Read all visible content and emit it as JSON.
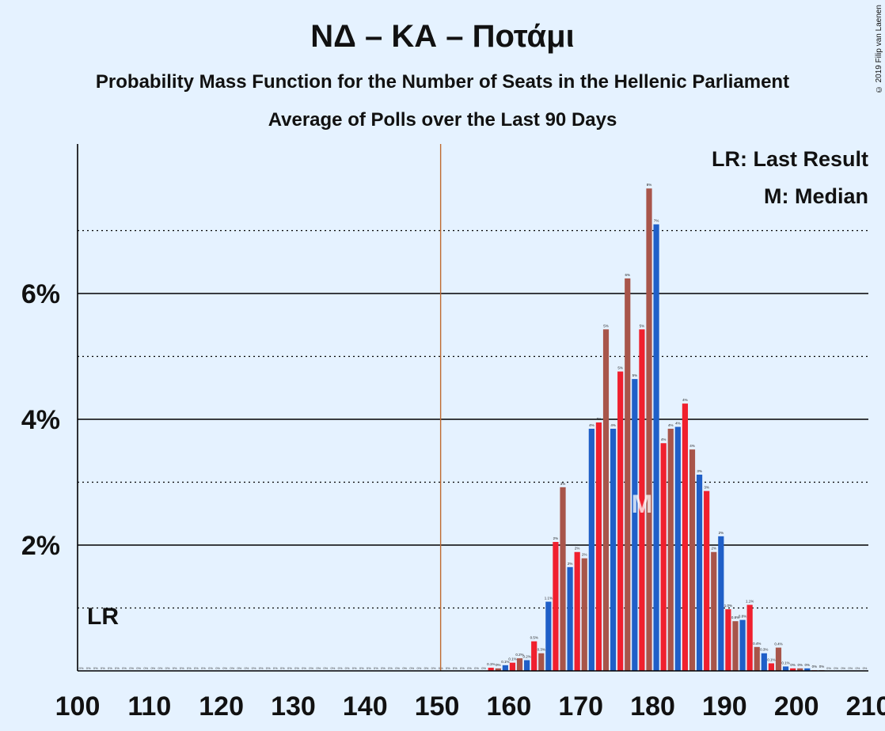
{
  "title": "ΝΔ – ΚΑ – Ποτάμι",
  "subtitle": "Probability Mass Function for the Number of Seats in the Hellenic Parliament",
  "subtitle2": "Average of Polls over the Last 90 Days",
  "credit": "© 2019 Filip van Laenen",
  "legend": {
    "last_result": "LR: Last Result",
    "median": "M: Median"
  },
  "markers": {
    "lr_label": "LR",
    "median_label": "M",
    "majority_line": 151,
    "median_seats": 178
  },
  "colors": {
    "blue": "#1f5fc8",
    "red": "#f0202e",
    "brown": "#a8554a",
    "majority_line": "#c06a30",
    "background": "#e5f2ff"
  },
  "chart_data": {
    "type": "bar",
    "xlabel": "",
    "ylabel": "",
    "xlim": [
      100,
      210
    ],
    "ylim": [
      0,
      8.4
    ],
    "x_ticks": [
      100,
      110,
      120,
      130,
      140,
      150,
      160,
      170,
      180,
      190,
      200,
      210
    ],
    "y_ticks": [
      2,
      4,
      6
    ],
    "y_tick_labels": [
      "2%",
      "4%",
      "6%"
    ],
    "grid": "solid at even percents, dotted at odd percents",
    "legend_position": "top-right",
    "x": [
      157,
      158,
      159,
      160,
      161,
      162,
      163,
      164,
      165,
      166,
      167,
      168,
      169,
      170,
      171,
      172,
      173,
      174,
      175,
      176,
      177,
      178,
      179,
      180,
      181,
      182,
      183,
      184,
      185,
      186,
      187,
      188,
      189,
      190,
      191,
      192,
      193,
      194,
      195,
      196,
      197,
      198,
      199,
      200,
      201,
      202,
      203
    ],
    "values": [
      0.05,
      0.04,
      0.09,
      0.13,
      0.2,
      0.17,
      0.47,
      0.28,
      1.1,
      2.05,
      2.92,
      1.65,
      1.89,
      1.79,
      3.85,
      3.95,
      5.43,
      3.85,
      4.76,
      6.24,
      4.64,
      5.43,
      7.67,
      7.1,
      3.62,
      3.85,
      3.88,
      4.25,
      3.52,
      3.12,
      2.86,
      1.89,
      2.14,
      0.98,
      0.79,
      0.81,
      1.05,
      0.38,
      0.28,
      0.12,
      0.37,
      0.07,
      0.04,
      0.04,
      0.04,
      0.01,
      0.01
    ],
    "value_labels": [
      "0.1%",
      "0%",
      "0.1%",
      "0.1%",
      "0.2%",
      "0.2%",
      "0.5%",
      "0.3%",
      "1.1%",
      "2%",
      "3%",
      "2%",
      "2%",
      "2%",
      "4%",
      "4%",
      "5%",
      "4%",
      "5%",
      "6%",
      "5%",
      "5%",
      "8%",
      "7%",
      "4%",
      "4%",
      "4%",
      "4%",
      "4%",
      "3%",
      "3%",
      "2%",
      "2%",
      "1.0%",
      "0.8%",
      "0.8%",
      "1.1%",
      "0.4%",
      "0.3%",
      "0.1%",
      "0.4%",
      "0.1%",
      "0%",
      "0%",
      "0%",
      "0%",
      "0%"
    ],
    "zero_label": "0%"
  }
}
